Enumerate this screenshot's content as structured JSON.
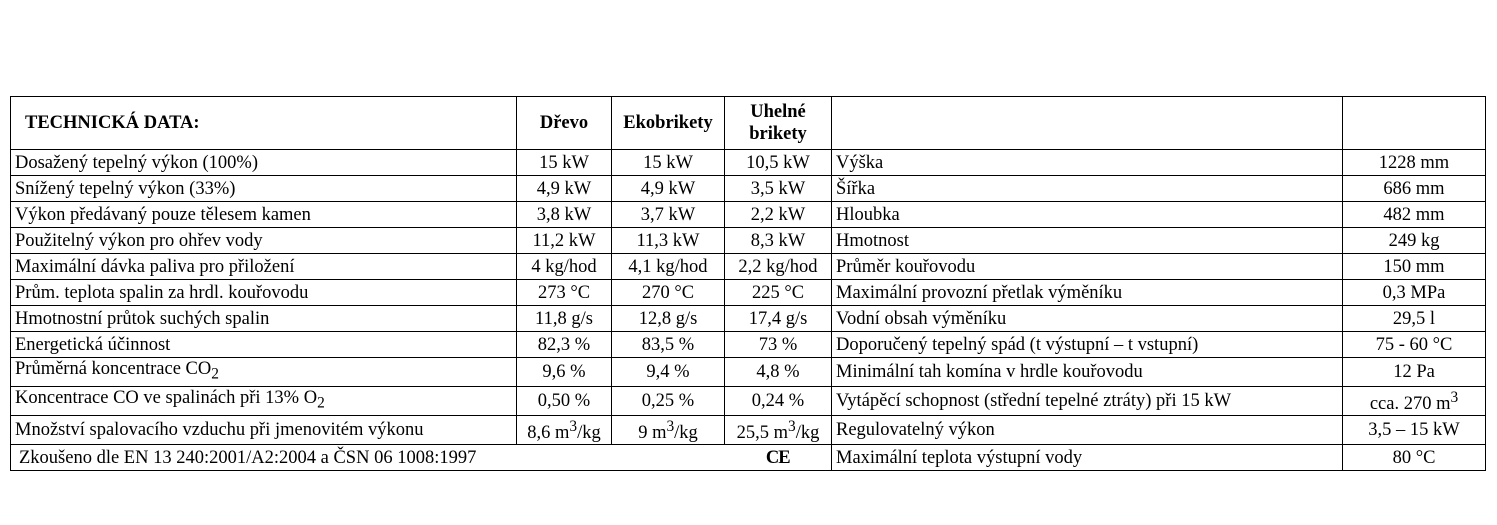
{
  "header": {
    "title": "TECHNICKÁ DATA:",
    "col_wood": "Dřevo",
    "col_eco": "Ekobrikety",
    "col_coal_line1": "Uhelné",
    "col_coal_line2": "brikety"
  },
  "left_rows": [
    {
      "label": "Dosažený tepelný výkon (100%)",
      "wood": "15 kW",
      "eco": "15 kW",
      "coal": "10,5 kW"
    },
    {
      "label": "Snížený tepelný výkon (33%)",
      "wood": "4,9 kW",
      "eco": "4,9 kW",
      "coal": "3,5 kW"
    },
    {
      "label": "Výkon předávaný pouze tělesem kamen",
      "wood": "3,8 kW",
      "eco": "3,7 kW",
      "coal": "2,2 kW"
    },
    {
      "label": "Použitelný výkon pro ohřev vody",
      "wood": "11,2 kW",
      "eco": "11,3 kW",
      "coal": "8,3 kW"
    },
    {
      "label": "Maximální dávka paliva pro přiložení",
      "wood": "4 kg/hod",
      "eco": "4,1 kg/hod",
      "coal": "2,2 kg/hod"
    },
    {
      "label": "Prům. teplota spalin za hrdl. kouřovodu",
      "wood": "273 °C",
      "eco": "270 °C",
      "coal": "225 °C"
    },
    {
      "label": "Hmotnostní průtok suchých spalin",
      "wood": "11,8 g/s",
      "eco": "12,8 g/s",
      "coal": "17,4 g/s"
    },
    {
      "label": "Energetická účinnost",
      "wood": "82,3 %",
      "eco": "83,5 %",
      "coal": "73 %"
    },
    {
      "label_pre": "Průměrná koncentrace CO",
      "label_sub": "2",
      "label_post": "",
      "wood": "9,6 %",
      "eco": "9,4 %",
      "coal": "4,8 %"
    },
    {
      "label_pre": "Koncentrace CO ve spalinách při 13% O",
      "label_sub": "2",
      "label_post": "",
      "wood": "0,50 %",
      "eco": "0,25 %",
      "coal": "0,24 %"
    },
    {
      "label": "Množství spalovacího vzduchu při jmenovitém výkonu",
      "wood_pre": "8,6 m",
      "wood_sup": "3",
      "wood_post": "/kg",
      "eco_pre": "9 m",
      "eco_sup": "3",
      "eco_post": "/kg",
      "coal_pre": "25,5 m",
      "coal_sup": "3",
      "coal_post": "/kg"
    }
  ],
  "footer": {
    "tested": "Zkoušeno dle EN 13 240:2001/A2:2004 a ČSN  06 1008:1997",
    "ce_mark": "CE"
  },
  "right_rows": [
    {
      "label": "Výška",
      "value": "1228 mm"
    },
    {
      "label": "Šířka",
      "value": "686 mm"
    },
    {
      "label": "Hloubka",
      "value": "482 mm"
    },
    {
      "label": "Hmotnost",
      "value": "249 kg"
    },
    {
      "label": "Průměr kouřovodu",
      "value": "150 mm"
    },
    {
      "label": "Maximální provozní přetlak výměníku",
      "value": "0,3 MPa"
    },
    {
      "label": "Vodní obsah výměníku",
      "value": "29,5 l"
    },
    {
      "label": "Doporučený tepelný spád (t výstupní – t vstupní)",
      "value": "75 - 60 °C"
    },
    {
      "label": "Minimální tah komína v hrdle kouřovodu",
      "value": "12 Pa"
    },
    {
      "label": "Vytápěcí schopnost (střední tepelné ztráty) při 15 kW",
      "value_pre": "cca. 270 m",
      "value_sup": "3"
    },
    {
      "label": "Regulovatelný výkon",
      "value": "3,5 – 15 kW"
    },
    {
      "label": "Maximální teplota výstupní vody",
      "value": "80 °C"
    }
  ]
}
